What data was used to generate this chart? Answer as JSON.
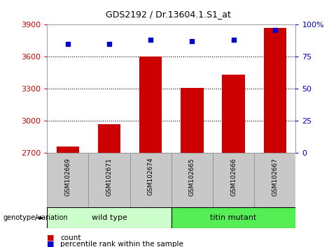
{
  "title": "GDS2192 / Dr.13604.1.S1_at",
  "samples": [
    "GSM102669",
    "GSM102671",
    "GSM102674",
    "GSM102665",
    "GSM102666",
    "GSM102667"
  ],
  "bar_values": [
    2760,
    2970,
    3600,
    3310,
    3430,
    3870
  ],
  "percentile_values": [
    85,
    85,
    88,
    87,
    88,
    96
  ],
  "bar_color": "#cc0000",
  "percentile_color": "#0000cc",
  "ymin": 2700,
  "ymax": 3900,
  "yticks": [
    2700,
    3000,
    3300,
    3600,
    3900
  ],
  "y2min": 0,
  "y2max": 100,
  "y2ticks": [
    0,
    25,
    50,
    75,
    100
  ],
  "group1_label": "wild type",
  "group2_label": "titin mutant",
  "group1_color": "#ccffcc",
  "group2_color": "#55ee55",
  "yticklabel_color_left": "#cc0000",
  "yticklabel_color_right": "#0000cc",
  "genotype_label": "genotype/variation",
  "legend_count_label": "count",
  "legend_pct_label": "percentile rank within the sample",
  "bg_color": "#ffffff",
  "bar_width": 0.55,
  "group_bar_color": "#c8c8c8",
  "grid_dotted_lines": [
    3000,
    3300,
    3600
  ],
  "title_fontsize": 9
}
